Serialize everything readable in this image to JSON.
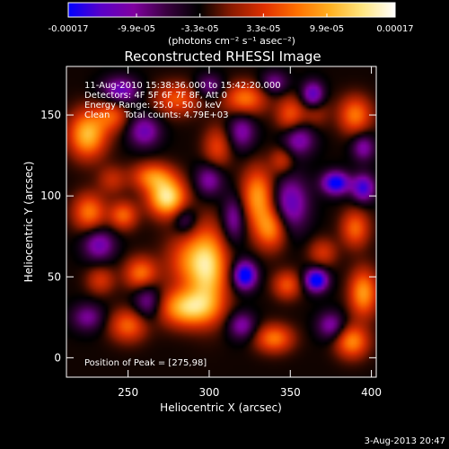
{
  "chart_data": {
    "type": "heatmap",
    "title": "Reconstructed RHESSI Image",
    "xlabel": "Heliocentric X (arcsec)",
    "ylabel": "Heliocentric Y (arcsec)",
    "xlim": [
      212,
      403
    ],
    "ylim": [
      -12,
      180
    ],
    "x_ticks": [
      250,
      300,
      350,
      400
    ],
    "y_ticks": [
      0,
      50,
      100,
      150
    ],
    "info_lines": [
      "11-Aug-2010 15:38:36.000 to 15:42:20.000",
      "Detectors: 4F 5F 6F 7F 8F, Att 0",
      "Energy Range: 25.0 - 50.0 keV",
      "Clean     Total counts: 4.79E+03"
    ],
    "peak_label": "Position of Peak = [275,98]",
    "peak": {
      "x": 275,
      "y": 98
    },
    "colorbar": {
      "range": [
        -0.00017,
        0.00017
      ],
      "tick_labels": [
        "-0.00017",
        "-9.9e-05",
        "-3.3e-05",
        "3.3e-05",
        "9.9e-05",
        "0.00017"
      ],
      "tick_values": [
        -0.00017,
        -9.9e-05,
        -3.3e-05,
        3.3e-05,
        9.9e-05,
        0.00017
      ],
      "unit_label": "(photons cm⁻² s⁻¹ asec⁻²)",
      "colors": [
        "#0000ff",
        "#5a00c8",
        "#8000a0",
        "#3a0040",
        "#000000",
        "#8a1a00",
        "#e03000",
        "#ff7000",
        "#ffb020",
        "#ffe680",
        "#ffffff"
      ]
    },
    "sources": [
      {
        "x": 274,
        "y": 99,
        "value": 0.00017,
        "sx": 8,
        "sy": 8
      },
      {
        "x": 287,
        "y": 31,
        "value": 0.00015,
        "sx": 12,
        "sy": 8
      },
      {
        "x": 300,
        "y": 55,
        "value": 0.00013,
        "sx": 8,
        "sy": 18
      },
      {
        "x": 288,
        "y": 60,
        "value": 9e-05,
        "sx": 10,
        "sy": 12
      },
      {
        "x": 330,
        "y": 100,
        "value": 0.00012,
        "sx": 7,
        "sy": 12
      },
      {
        "x": 338,
        "y": 80,
        "value": 0.00011,
        "sx": 7,
        "sy": 9
      },
      {
        "x": 265,
        "y": 112,
        "value": 0.0001,
        "sx": 9,
        "sy": 6
      },
      {
        "x": 225,
        "y": 138,
        "value": 0.00014,
        "sx": 8,
        "sy": 10
      },
      {
        "x": 240,
        "y": 150,
        "value": 8e-05,
        "sx": 7,
        "sy": 7
      },
      {
        "x": 226,
        "y": 90,
        "value": 0.0001,
        "sx": 7,
        "sy": 8
      },
      {
        "x": 247,
        "y": 88,
        "value": 9e-05,
        "sx": 6,
        "sy": 6
      },
      {
        "x": 258,
        "y": 52,
        "value": 0.0001,
        "sx": 7,
        "sy": 7
      },
      {
        "x": 233,
        "y": 48,
        "value": 6e-05,
        "sx": 6,
        "sy": 6
      },
      {
        "x": 250,
        "y": 20,
        "value": 9e-05,
        "sx": 8,
        "sy": 7
      },
      {
        "x": 322,
        "y": 160,
        "value": 0.0001,
        "sx": 9,
        "sy": 7
      },
      {
        "x": 280,
        "y": 160,
        "value": 8e-05,
        "sx": 10,
        "sy": 7
      },
      {
        "x": 350,
        "y": 150,
        "value": 8e-05,
        "sx": 6,
        "sy": 8
      },
      {
        "x": 390,
        "y": 150,
        "value": 0.0001,
        "sx": 7,
        "sy": 8
      },
      {
        "x": 390,
        "y": 80,
        "value": 9e-05,
        "sx": 6,
        "sy": 8
      },
      {
        "x": 395,
        "y": 40,
        "value": 0.00012,
        "sx": 6,
        "sy": 10
      },
      {
        "x": 388,
        "y": 10,
        "value": 0.00011,
        "sx": 7,
        "sy": 7
      },
      {
        "x": 340,
        "y": 12,
        "value": 0.0001,
        "sx": 8,
        "sy": 6
      },
      {
        "x": 348,
        "y": 45,
        "value": 8e-05,
        "sx": 6,
        "sy": 6
      },
      {
        "x": 305,
        "y": 130,
        "value": 7e-05,
        "sx": 6,
        "sy": 9
      },
      {
        "x": 240,
        "y": 110,
        "value": 5e-05,
        "sx": 6,
        "sy": 6
      },
      {
        "x": 345,
        "y": 122,
        "value": 6e-05,
        "sx": 5,
        "sy": 6
      },
      {
        "x": 370,
        "y": 65,
        "value": 6e-05,
        "sx": 6,
        "sy": 6
      },
      {
        "x": 365,
        "y": 155,
        "value": 6e-05,
        "sx": 6,
        "sy": 8
      },
      {
        "x": 322,
        "y": 51,
        "value": -0.00016,
        "sx": 5,
        "sy": 6
      },
      {
        "x": 366,
        "y": 48,
        "value": -0.00016,
        "sx": 5,
        "sy": 5
      },
      {
        "x": 378,
        "y": 108,
        "value": -0.00015,
        "sx": 6,
        "sy": 5
      },
      {
        "x": 395,
        "y": 105,
        "value": -0.00012,
        "sx": 5,
        "sy": 6
      },
      {
        "x": 364,
        "y": 162,
        "value": -0.00014,
        "sx": 5,
        "sy": 6
      },
      {
        "x": 315,
        "y": 86,
        "value": -8e-05,
        "sx": 5,
        "sy": 10
      },
      {
        "x": 350,
        "y": 95,
        "value": -0.0001,
        "sx": 8,
        "sy": 12
      },
      {
        "x": 355,
        "y": 135,
        "value": -9e-05,
        "sx": 7,
        "sy": 7
      },
      {
        "x": 320,
        "y": 140,
        "value": -8e-05,
        "sx": 6,
        "sy": 8
      },
      {
        "x": 300,
        "y": 110,
        "value": -8e-05,
        "sx": 6,
        "sy": 7
      },
      {
        "x": 260,
        "y": 140,
        "value": -9e-05,
        "sx": 7,
        "sy": 7
      },
      {
        "x": 245,
        "y": 165,
        "value": -0.0001,
        "sx": 8,
        "sy": 6
      },
      {
        "x": 232,
        "y": 70,
        "value": -9e-05,
        "sx": 7,
        "sy": 7
      },
      {
        "x": 262,
        "y": 35,
        "value": -8e-05,
        "sx": 6,
        "sy": 8
      },
      {
        "x": 225,
        "y": 25,
        "value": -7e-05,
        "sx": 7,
        "sy": 6
      },
      {
        "x": 320,
        "y": 20,
        "value": -8e-05,
        "sx": 6,
        "sy": 6
      },
      {
        "x": 375,
        "y": 20,
        "value": -8e-05,
        "sx": 6,
        "sy": 6
      },
      {
        "x": 395,
        "y": 130,
        "value": -8e-05,
        "sx": 5,
        "sy": 6
      },
      {
        "x": 285,
        "y": 85,
        "value": -6e-05,
        "sx": 5,
        "sy": 6
      },
      {
        "x": 300,
        "y": 168,
        "value": -7e-05,
        "sx": 6,
        "sy": 5
      },
      {
        "x": 340,
        "y": 170,
        "value": -7e-05,
        "sx": 6,
        "sy": 5
      }
    ]
  },
  "footer": {
    "date": "3-Aug-2013 20:47"
  }
}
